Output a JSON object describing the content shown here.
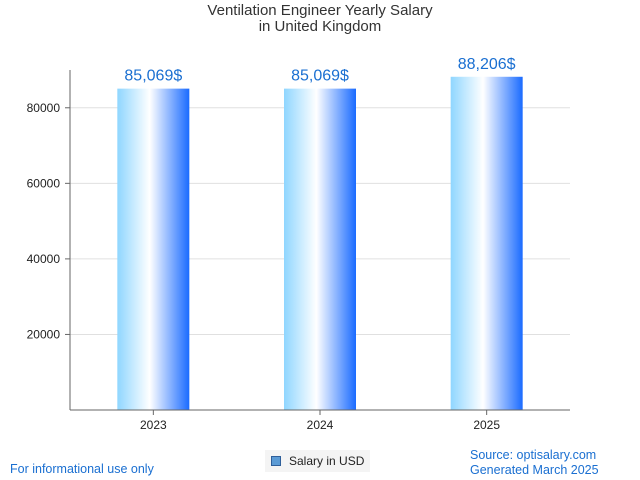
{
  "chart_data": {
    "type": "bar",
    "title_line1": "Ventilation Engineer Yearly Salary",
    "title_line2": "in United Kingdom",
    "categories": [
      "2023",
      "2024",
      "2025"
    ],
    "values": [
      85069,
      85069,
      88206
    ],
    "value_labels": [
      "85,069$",
      "85,069$",
      "88,206$"
    ],
    "ylim": [
      0,
      90000
    ],
    "yticks": [
      20000,
      40000,
      60000,
      80000
    ],
    "ytick_labels": [
      "20000",
      "40000",
      "60000",
      "80000"
    ],
    "grid": true,
    "legend": "Salary in USD",
    "legend_position": "bottom-center",
    "xlabel": "",
    "ylabel": ""
  },
  "footer": {
    "left": "For informational use only",
    "source": "Source: optisalary.com",
    "generated": "Generated March 2025"
  },
  "colors": {
    "bar_light": "#8fd6ff",
    "bar_mid": "#ffffff",
    "bar_dark": "#1a6bff",
    "value_label": "#1a6fd1",
    "grid": "#e0e0e0",
    "axis": "#666666"
  }
}
